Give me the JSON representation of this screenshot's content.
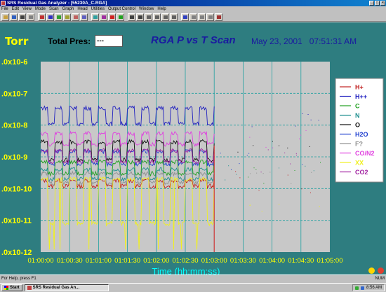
{
  "window": {
    "title": "SRS Residual Gas Analyzer - [55230A_C.RGA]"
  },
  "menu": [
    "File",
    "Edit",
    "View",
    "Mode",
    "Scan",
    "Graph",
    "Head",
    "Utilities",
    "Output Control",
    "Window",
    "Help"
  ],
  "toolbar": {
    "icons": [
      "open-icon",
      "save-icon",
      "print-icon",
      "copy-icon",
      "graph-icon",
      "graph-icon",
      "graph-icon",
      "analog-icon",
      "histogram-icon",
      "table-icon",
      "pvst-icon",
      "leak-icon",
      "stop-icon",
      "run-icon",
      "zoom-icon",
      "zoom-icon",
      "scale-icon",
      "scale-icon",
      "scale-icon",
      "scale-icon",
      "help-icon",
      "tool-icon",
      "tool-icon",
      "tool-icon",
      "about-icon"
    ]
  },
  "plot": {
    "unit": "Torr",
    "total_pressure_label": "Total Pres:",
    "total_pressure_value": "---",
    "title": "RGA P vs T Scan",
    "date": "May 23, 2001",
    "time": "07:51:31 AM",
    "xlabel": "Time (hh:mm:ss)",
    "colors": {
      "background": "#2e7d80",
      "plot_area": "#c8c8c8",
      "axis_text": "#ffff00",
      "xlabel": "#00ffff",
      "title": "#1a1aa0"
    }
  },
  "chart_data": {
    "type": "line",
    "title": "RGA P vs T Scan",
    "xlabel": "Time (hh:mm:ss)",
    "ylabel": "Torr",
    "yscale": "log",
    "ylim": [
      1e-12,
      1e-06
    ],
    "y_tick_labels": [
      ".0x10-6",
      ".0x10-7",
      ".0x10-8",
      ".0x10-9",
      ".0x10-10",
      ".0x10-11",
      ".0x10-12"
    ],
    "x_tick_labels": [
      "01:00:00",
      "01:00:30",
      "01:01:00",
      "01:01:30",
      "01:02:00",
      "01:02:30",
      "01:03:00",
      "01:03:30",
      "01:04:00",
      "01:04:30",
      "01:05:00"
    ],
    "xlim_seconds": [
      0,
      300
    ],
    "data_end_seconds": 180,
    "grid": true,
    "legend_position": "right",
    "series": [
      {
        "name": "H+",
        "color": "#c02020",
        "level": 2e-10,
        "square_high": 1.8e-10,
        "square_low": 1.2e-10
      },
      {
        "name": "H++",
        "color": "#2020c0",
        "level": 1.6e-08,
        "square_high": 3.5e-08,
        "square_low": 1.1e-08
      },
      {
        "name": "C",
        "color": "#20a020",
        "level": 5e-10,
        "square_high": 7e-10,
        "square_low": 3e-10
      },
      {
        "name": "N",
        "color": "#209090",
        "level": 3e-10,
        "square_high": 4e-10,
        "square_low": 2e-10
      },
      {
        "name": "O",
        "color": "#101010",
        "level": 2e-09,
        "square_high": 3e-09,
        "square_low": 8e-10
      },
      {
        "name": "H2O",
        "color": "#2040d0",
        "level": 1e-09,
        "square_high": 1.5e-09,
        "square_low": 6e-10
      },
      {
        "name": "F?",
        "color": "#909090",
        "level": 2e-10,
        "square_high": 3e-10,
        "square_low": 1.5e-10
      },
      {
        "name": "CO/N2",
        "color": "#e040e0",
        "level": 4e-09,
        "square_high": 5.5e-09,
        "square_low": 2.5e-09
      },
      {
        "name": "XX",
        "color": "#f0f020",
        "level": 2e-11,
        "square_high": 2e-10,
        "square_low": 8e-12
      },
      {
        "name": "CO2",
        "color": "#a020a0",
        "level": 1e-09,
        "square_high": 1.6e-09,
        "square_low": 7e-10
      }
    ]
  },
  "status": {
    "text": "For Help, press F1",
    "indicator": "NUM"
  },
  "taskbar": {
    "start": "Start",
    "task": "SRS Residual Gas An...",
    "clock": "8:56 AM"
  }
}
